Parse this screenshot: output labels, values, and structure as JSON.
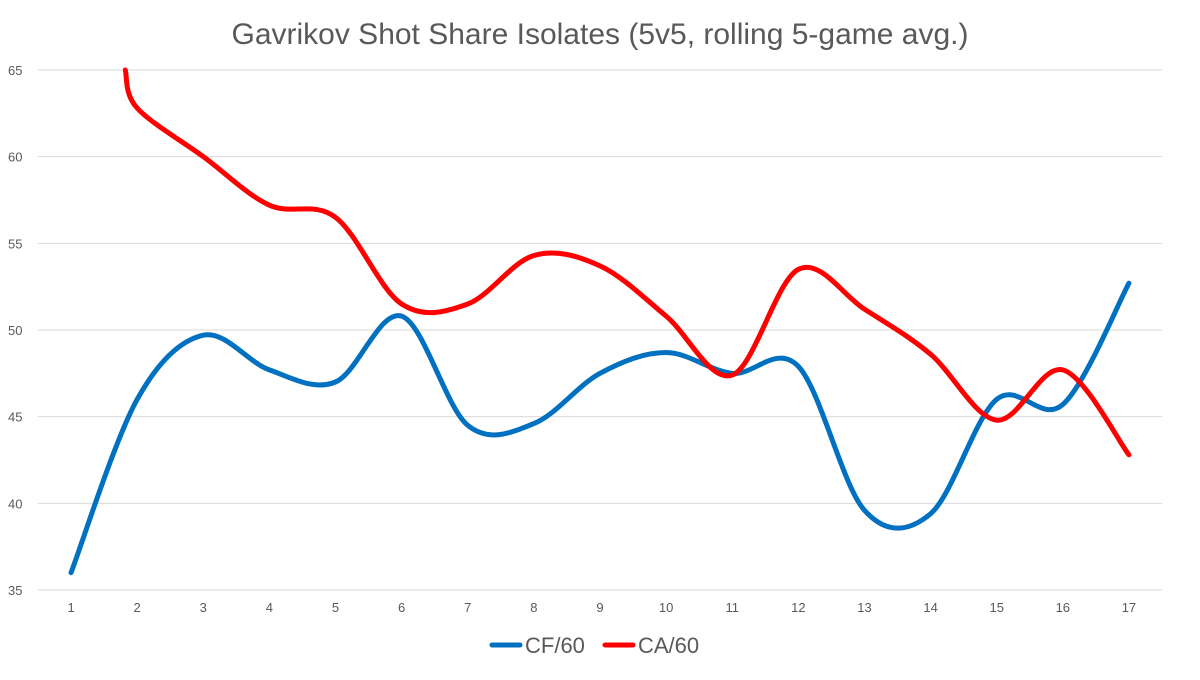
{
  "chart_data": {
    "type": "line",
    "title": "Gavrikov Shot Share Isolates (5v5, rolling 5-game avg.)",
    "xlabel": "",
    "ylabel": "",
    "x": [
      1,
      2,
      3,
      4,
      5,
      6,
      7,
      8,
      9,
      10,
      11,
      12,
      13,
      14,
      15,
      16,
      17
    ],
    "ylim": [
      35,
      65
    ],
    "yticks": [
      35,
      40,
      45,
      50,
      55,
      60,
      65
    ],
    "grid": true,
    "legend_position": "bottom",
    "series": [
      {
        "name": "CF/60",
        "color": "#0070c0",
        "values": [
          36.0,
          46.0,
          49.7,
          47.7,
          47.0,
          50.8,
          44.5,
          44.6,
          47.5,
          48.7,
          47.5,
          47.9,
          39.6,
          39.4,
          46.0,
          45.7,
          52.7
        ]
      },
      {
        "name": "CA/60",
        "color": "#ff0000",
        "values": [
          null,
          62.8,
          60.0,
          57.2,
          56.5,
          51.5,
          51.5,
          54.3,
          53.7,
          50.8,
          47.4,
          53.5,
          51.2,
          48.6,
          44.8,
          47.7,
          42.8
        ],
        "start": {
          "x": 1.82,
          "y": 65
        }
      }
    ]
  }
}
